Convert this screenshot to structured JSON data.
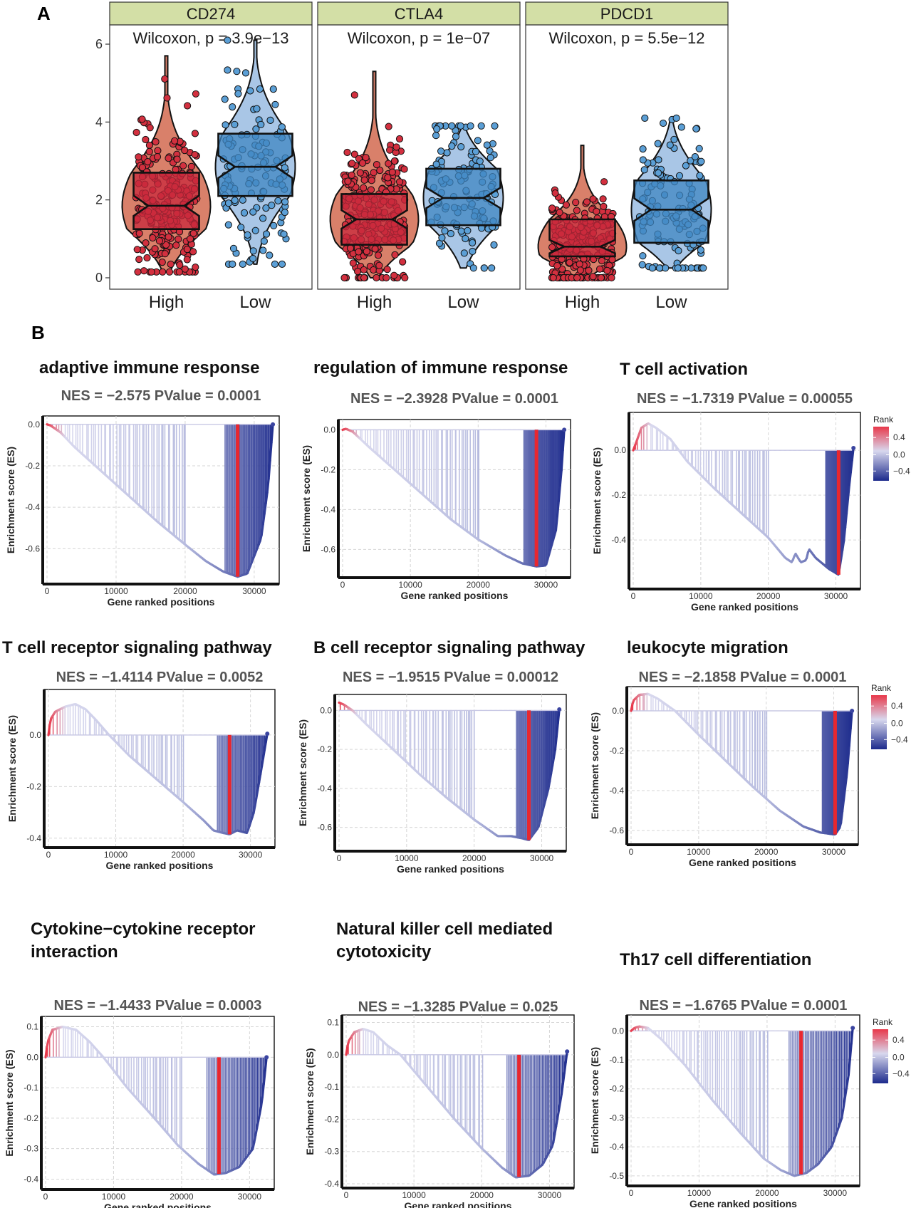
{
  "panel_labels": {
    "a": "A",
    "b": "B"
  },
  "colors": {
    "high_box": "#c8283c",
    "high_violin": "#d9806a",
    "low_box": "#3f86c2",
    "low_violin": "#a9c6e6",
    "strip_bg": "#d3dfa6",
    "rank_high": "#e8384a",
    "rank_mid": "#d8d8ee",
    "rank_low": "#1c2a8c",
    "leading_edge": "#e8272f"
  },
  "chart_data": [
    {
      "type": "violin-box",
      "panel": "A",
      "facets": [
        {
          "name": "CD274",
          "test": "Wilcoxon, p = 3.9e−13",
          "groups": [
            {
              "name": "High",
              "q1": 1.25,
              "median": 1.85,
              "q3": 2.7,
              "whisker_low": 0.2,
              "whisker_high": 4.2,
              "min": 0.15,
              "max": 5.7
            },
            {
              "name": "Low",
              "q1": 2.1,
              "median": 2.85,
              "q3": 3.7,
              "whisker_low": 0.4,
              "whisker_high": 5.9,
              "min": 0.35,
              "max": 6.1
            }
          ]
        },
        {
          "name": "CTLA4",
          "test": "Wilcoxon, p = 1e−07",
          "groups": [
            {
              "name": "High",
              "q1": 0.85,
              "median": 1.5,
              "q3": 2.15,
              "whisker_low": 0.05,
              "whisker_high": 3.9,
              "min": 0.0,
              "max": 5.3
            },
            {
              "name": "Low",
              "q1": 1.35,
              "median": 2.05,
              "q3": 2.8,
              "whisker_low": 0.3,
              "whisker_high": 3.85,
              "min": 0.25,
              "max": 3.9
            }
          ]
        },
        {
          "name": "PDCD1",
          "test": "Wilcoxon, p = 5.5e−12",
          "groups": [
            {
              "name": "High",
              "q1": 0.55,
              "median": 0.8,
              "q3": 1.5,
              "whisker_low": 0.05,
              "whisker_high": 3.3,
              "min": 0.0,
              "max": 3.4
            },
            {
              "name": "Low",
              "q1": 0.9,
              "median": 1.75,
              "q3": 2.5,
              "whisker_low": 0.3,
              "whisker_high": 4.1,
              "min": 0.25,
              "max": 4.1
            }
          ]
        }
      ],
      "ylim": [
        0,
        6.2
      ],
      "yticks": [
        0,
        2,
        4,
        6
      ],
      "xlabel": "",
      "ylabel": ""
    },
    {
      "type": "gsea-line",
      "title": "adaptive immune response",
      "stats": "NES = −2.575   PValue = 0.0001",
      "xlabel": "Gene ranked positions",
      "ylabel": "Enrichment score (ES)",
      "xlim": [
        0,
        33000
      ],
      "xticks": [
        0,
        10000,
        20000,
        30000
      ],
      "ylim": [
        -0.75,
        0.02
      ],
      "yticks": [
        0.0,
        -0.2,
        -0.4,
        -0.6
      ],
      "ytick_labels": [
        "0.0",
        "-0.2",
        "-0.4",
        "-0.6"
      ],
      "curve": [
        [
          0,
          0
        ],
        [
          500,
          -0.005
        ],
        [
          2000,
          -0.04
        ],
        [
          4000,
          -0.11
        ],
        [
          8000,
          -0.23
        ],
        [
          12000,
          -0.35
        ],
        [
          16000,
          -0.47
        ],
        [
          20000,
          -0.58
        ],
        [
          23000,
          -0.66
        ],
        [
          25500,
          -0.71
        ],
        [
          27600,
          -0.735
        ],
        [
          29000,
          -0.72
        ],
        [
          31000,
          -0.55
        ],
        [
          32000,
          -0.3
        ],
        [
          32700,
          0
        ]
      ],
      "leading_edge": 27600,
      "legend": false
    },
    {
      "type": "gsea-line",
      "title": "regulation of immune response",
      "stats": "NES = −2.3928   PValue = 0.0001",
      "xlabel": "Gene ranked positions",
      "ylabel": "Enrichment score (ES)",
      "xlim": [
        0,
        33000
      ],
      "xticks": [
        0,
        10000,
        20000,
        30000
      ],
      "ylim": [
        -0.72,
        0.03
      ],
      "yticks": [
        0.0,
        -0.2,
        -0.4,
        -0.6
      ],
      "ytick_labels": [
        "0.0",
        "-0.2",
        "-0.4",
        "-0.6"
      ],
      "curve": [
        [
          0,
          0
        ],
        [
          500,
          0.005
        ],
        [
          1500,
          -0.01
        ],
        [
          4000,
          -0.09
        ],
        [
          8000,
          -0.21
        ],
        [
          12000,
          -0.33
        ],
        [
          16000,
          -0.45
        ],
        [
          20000,
          -0.55
        ],
        [
          24000,
          -0.63
        ],
        [
          26500,
          -0.67
        ],
        [
          28600,
          -0.685
        ],
        [
          30000,
          -0.68
        ],
        [
          31500,
          -0.5
        ],
        [
          32300,
          -0.2
        ],
        [
          32700,
          0
        ]
      ],
      "leading_edge": 28600,
      "legend": false
    },
    {
      "type": "gsea-line",
      "title": "T cell activation",
      "stats": "NES = −1.7319   PValue = 0.00055",
      "xlabel": "Gene ranked positions",
      "ylabel": "Enrichment score (ES)",
      "xlim": [
        0,
        33000
      ],
      "xticks": [
        0,
        10000,
        20000,
        30000
      ],
      "ylim": [
        -0.6,
        0.15
      ],
      "yticks": [
        0.0,
        -0.2,
        -0.4
      ],
      "ytick_labels": [
        "0.0",
        "-0.2",
        "-0.4"
      ],
      "curve": [
        [
          0,
          0
        ],
        [
          500,
          0.04
        ],
        [
          1200,
          0.1
        ],
        [
          2200,
          0.12
        ],
        [
          3400,
          0.1
        ],
        [
          5500,
          0.05
        ],
        [
          8000,
          -0.05
        ],
        [
          12000,
          -0.17
        ],
        [
          16000,
          -0.28
        ],
        [
          20000,
          -0.39
        ],
        [
          22500,
          -0.48
        ],
        [
          23500,
          -0.5
        ],
        [
          24000,
          -0.46
        ],
        [
          24800,
          -0.5
        ],
        [
          25600,
          -0.49
        ],
        [
          26000,
          -0.44
        ],
        [
          27000,
          -0.48
        ],
        [
          29000,
          -0.53
        ],
        [
          30400,
          -0.555
        ],
        [
          31200,
          -0.4
        ],
        [
          32000,
          -0.15
        ],
        [
          32600,
          0.01
        ]
      ],
      "leading_edge": 30400,
      "legend": true,
      "legend_title": "Rank",
      "legend_ticks": [
        "0.4",
        "0.0",
        "−0.4"
      ]
    },
    {
      "type": "gsea-line",
      "title": "T cell receptor signaling pathway",
      "stats": "NES = −1.4114   PValue = 0.0052",
      "xlabel": "Gene ranked positions",
      "ylabel": "Enrichment score (ES)",
      "xlim": [
        0,
        33000
      ],
      "xticks": [
        0,
        10000,
        20000,
        30000
      ],
      "ylim": [
        -0.42,
        0.16
      ],
      "yticks": [
        0.0,
        -0.2,
        -0.4
      ],
      "ytick_labels": [
        "0.0",
        "-0.2",
        "-0.4"
      ],
      "curve": [
        [
          0,
          0
        ],
        [
          300,
          0.06
        ],
        [
          1000,
          0.09
        ],
        [
          2500,
          0.11
        ],
        [
          4000,
          0.12
        ],
        [
          5500,
          0.1
        ],
        [
          7000,
          0.06
        ],
        [
          9000,
          0.0
        ],
        [
          12000,
          -0.08
        ],
        [
          16000,
          -0.17
        ],
        [
          20000,
          -0.26
        ],
        [
          23000,
          -0.33
        ],
        [
          24500,
          -0.37
        ],
        [
          26000,
          -0.38
        ],
        [
          26900,
          -0.385
        ],
        [
          28000,
          -0.37
        ],
        [
          29500,
          -0.38
        ],
        [
          30500,
          -0.3
        ],
        [
          31500,
          -0.15
        ],
        [
          32500,
          0.005
        ]
      ],
      "leading_edge": 26900,
      "legend": false
    },
    {
      "type": "gsea-line",
      "title": "B cell receptor signaling pathway",
      "stats": "NES = −1.9515   PValue = 0.00012",
      "xlabel": "Gene ranked positions",
      "ylabel": "Enrichment score (ES)",
      "xlim": [
        0,
        33000
      ],
      "xticks": [
        0,
        10000,
        20000,
        30000
      ],
      "ylim": [
        -0.7,
        0.06
      ],
      "yticks": [
        0.0,
        -0.2,
        -0.4,
        -0.6
      ],
      "ytick_labels": [
        "0.0",
        "-0.2",
        "-0.4",
        "-0.6"
      ],
      "curve": [
        [
          0,
          0.04
        ],
        [
          700,
          0.03
        ],
        [
          2000,
          0.0
        ],
        [
          4000,
          -0.07
        ],
        [
          8000,
          -0.2
        ],
        [
          12000,
          -0.33
        ],
        [
          16000,
          -0.45
        ],
        [
          20000,
          -0.56
        ],
        [
          23500,
          -0.645
        ],
        [
          25500,
          -0.645
        ],
        [
          27000,
          -0.655
        ],
        [
          28100,
          -0.665
        ],
        [
          29500,
          -0.6
        ],
        [
          31000,
          -0.4
        ],
        [
          32000,
          -0.2
        ],
        [
          32600,
          0.005
        ]
      ],
      "leading_edge": 28100,
      "legend": false
    },
    {
      "type": "gsea-line",
      "title": "leukocyte migration",
      "stats": "NES = −2.1858   PValue = 0.0001",
      "xlabel": "Gene ranked positions",
      "ylabel": "Enrichment score (ES)",
      "xlim": [
        0,
        33000
      ],
      "xticks": [
        0,
        10000,
        20000,
        30000
      ],
      "ylim": [
        -0.65,
        0.1
      ],
      "yticks": [
        0.0,
        -0.2,
        -0.4,
        -0.6
      ],
      "ytick_labels": [
        "0.0",
        "-0.2",
        "-0.4",
        "-0.6"
      ],
      "curve": [
        [
          0,
          0
        ],
        [
          300,
          0.05
        ],
        [
          1200,
          0.08
        ],
        [
          2500,
          0.085
        ],
        [
          4000,
          0.06
        ],
        [
          6500,
          0.0
        ],
        [
          10000,
          -0.12
        ],
        [
          14000,
          -0.25
        ],
        [
          18000,
          -0.38
        ],
        [
          22000,
          -0.5
        ],
        [
          25500,
          -0.58
        ],
        [
          28000,
          -0.61
        ],
        [
          30200,
          -0.62
        ],
        [
          31000,
          -0.58
        ],
        [
          32000,
          -0.3
        ],
        [
          32700,
          0.0
        ]
      ],
      "leading_edge": 30200,
      "legend": true,
      "legend_title": "Rank",
      "legend_ticks": [
        "0.4",
        "0.0",
        "−0.4"
      ]
    },
    {
      "type": "gsea-line",
      "title": "Cytokine−cytokine receptor interaction",
      "title_lines": [
        "Cytokine−cytokine receptor",
        "interaction"
      ],
      "stats": "NES = −1.4433   PValue = 0.0003",
      "xlabel": "Gene ranked positions",
      "ylabel": "Enrichment score (ES)",
      "xlim": [
        0,
        33000
      ],
      "xticks": [
        0,
        10000,
        20000,
        30000
      ],
      "ylim": [
        -0.42,
        0.12
      ],
      "yticks": [
        0.1,
        0.0,
        -0.1,
        -0.2,
        -0.3,
        -0.4
      ],
      "ytick_labels": [
        "0.1",
        "0.0",
        "-0.1",
        "-0.2",
        "-0.3",
        "-0.4"
      ],
      "curve": [
        [
          0,
          0
        ],
        [
          300,
          0.05
        ],
        [
          1000,
          0.09
        ],
        [
          2500,
          0.1
        ],
        [
          4500,
          0.09
        ],
        [
          6500,
          0.05
        ],
        [
          8500,
          0.0
        ],
        [
          12000,
          -0.1
        ],
        [
          16000,
          -0.2
        ],
        [
          19500,
          -0.29
        ],
        [
          22500,
          -0.35
        ],
        [
          24800,
          -0.385
        ],
        [
          26500,
          -0.38
        ],
        [
          28500,
          -0.36
        ],
        [
          30500,
          -0.3
        ],
        [
          31800,
          -0.15
        ],
        [
          32500,
          0.0
        ]
      ],
      "leading_edge": 25500,
      "legend": false
    },
    {
      "type": "gsea-line",
      "title": "Natural killer cell mediated cytotoxicity",
      "title_lines": [
        "Natural killer cell mediated",
        "cytotoxicity"
      ],
      "stats": "NES = −1.3285   PValue = 0.025",
      "xlabel": "Gene ranked positions",
      "ylabel": "Enrichment score (ES)",
      "xlim": [
        0,
        33000
      ],
      "xticks": [
        0,
        10000,
        20000,
        30000
      ],
      "ylim": [
        -0.4,
        0.11
      ],
      "yticks": [
        0.1,
        0.0,
        -0.1,
        -0.2,
        -0.3,
        -0.4
      ],
      "ytick_labels": [
        "0.1",
        "0.0",
        "-0.1",
        "-0.2",
        "-0.3",
        "-0.4"
      ],
      "curve": [
        [
          0,
          0
        ],
        [
          300,
          0.04
        ],
        [
          1200,
          0.07
        ],
        [
          2500,
          0.08
        ],
        [
          4000,
          0.07
        ],
        [
          6000,
          0.03
        ],
        [
          8000,
          0.0
        ],
        [
          12000,
          -0.1
        ],
        [
          16000,
          -0.2
        ],
        [
          20000,
          -0.29
        ],
        [
          23000,
          -0.35
        ],
        [
          25000,
          -0.38
        ],
        [
          27000,
          -0.375
        ],
        [
          29000,
          -0.34
        ],
        [
          30500,
          -0.28
        ],
        [
          31800,
          -0.12
        ],
        [
          32600,
          0.01
        ]
      ],
      "leading_edge": 25500,
      "legend": false
    },
    {
      "type": "gsea-line",
      "title": "Th17 cell differentiation",
      "stats": "NES = −1.6765   PValue = 0.0001",
      "xlabel": "Gene ranked positions",
      "ylabel": "Enrichment score (ES)",
      "xlim": [
        0,
        33000
      ],
      "xticks": [
        0,
        10000,
        20000,
        30000
      ],
      "ylim": [
        -0.52,
        0.04
      ],
      "yticks": [
        0.0,
        -0.1,
        -0.2,
        -0.3,
        -0.4,
        -0.5
      ],
      "ytick_labels": [
        "0.0",
        "-0.1",
        "-0.2",
        "-0.3",
        "-0.4",
        "-0.5"
      ],
      "curve": [
        [
          0,
          0
        ],
        [
          500,
          0.01
        ],
        [
          1200,
          0.015
        ],
        [
          2500,
          0.01
        ],
        [
          4500,
          -0.03
        ],
        [
          8000,
          -0.12
        ],
        [
          12000,
          -0.24
        ],
        [
          16000,
          -0.35
        ],
        [
          19500,
          -0.44
        ],
        [
          22000,
          -0.48
        ],
        [
          24000,
          -0.5
        ],
        [
          25800,
          -0.49
        ],
        [
          27500,
          -0.46
        ],
        [
          29500,
          -0.4
        ],
        [
          31000,
          -0.3
        ],
        [
          32000,
          -0.15
        ],
        [
          32600,
          0.01
        ]
      ],
      "leading_edge": 25000,
      "legend": true,
      "legend_title": "Rank",
      "legend_ticks": [
        "0.4",
        "0.0",
        "−0.4"
      ]
    }
  ]
}
